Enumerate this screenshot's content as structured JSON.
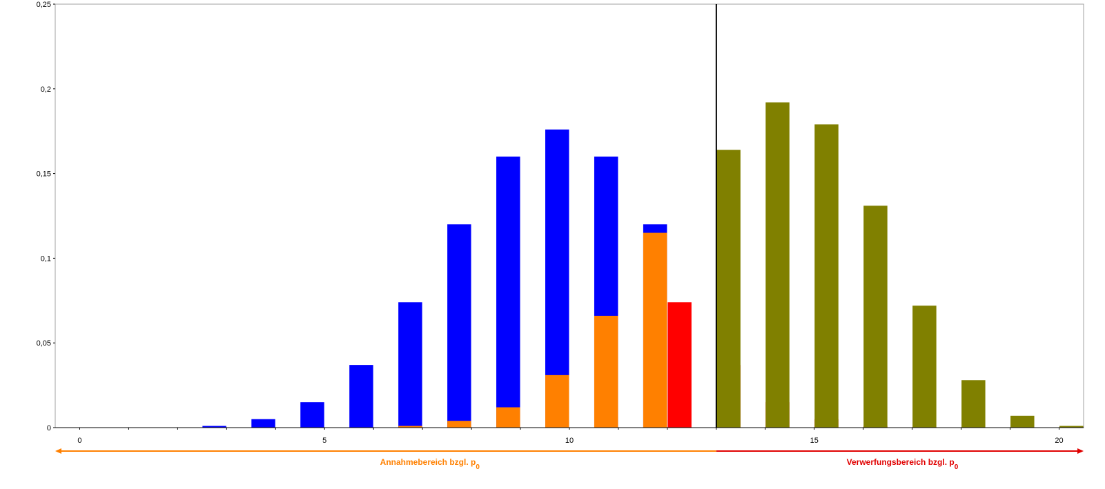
{
  "chart_data": {
    "type": "bar",
    "title": "",
    "xlabel": "",
    "ylabel": "",
    "xlim": [
      -0.5,
      20.5
    ],
    "ylim": [
      0,
      0.25
    ],
    "x_ticks": [
      0,
      5,
      10,
      15,
      20
    ],
    "x_tick_labels": [
      "0",
      "5",
      "10",
      "15",
      "20"
    ],
    "y_ticks": [
      0,
      0.05,
      0.1,
      0.15,
      0.2,
      0.25
    ],
    "y_tick_labels": [
      "0",
      "0,05",
      "0,1",
      "0,15",
      "0,2",
      "0,25"
    ],
    "grid": false,
    "critical_value": 13,
    "series": [
      {
        "color": "#0000ff",
        "x": [
          3,
          4,
          5,
          6,
          7,
          8,
          9,
          10,
          11,
          12
        ],
        "values": [
          0.001,
          0.005,
          0.015,
          0.037,
          0.074,
          0.12,
          0.16,
          0.176,
          0.16,
          0.12
        ]
      },
      {
        "color": "#ff8000",
        "x": [
          7,
          8,
          9,
          10,
          11,
          12
        ],
        "values": [
          0.001,
          0.004,
          0.012,
          0.031,
          0.066,
          0.115
        ]
      },
      {
        "color": "#ff0000",
        "x": [
          12,
          13,
          14,
          15,
          16,
          17
        ],
        "values": [
          0.074,
          0.037,
          0.015,
          0.005,
          0.001,
          0.0005
        ]
      },
      {
        "color": "#808000",
        "x": [
          13,
          14,
          15,
          16,
          17,
          18,
          19,
          20
        ],
        "values": [
          0.164,
          0.192,
          0.179,
          0.131,
          0.072,
          0.028,
          0.007,
          0.001
        ]
      }
    ],
    "regions": {
      "accept": {
        "label": "Annahmebereich bzgl. p",
        "subscript": "0",
        "color": "#ff8000"
      },
      "reject": {
        "label": "Verwerfungsbereich bzgl. p",
        "subscript": "0",
        "color": "#e00000"
      }
    }
  }
}
